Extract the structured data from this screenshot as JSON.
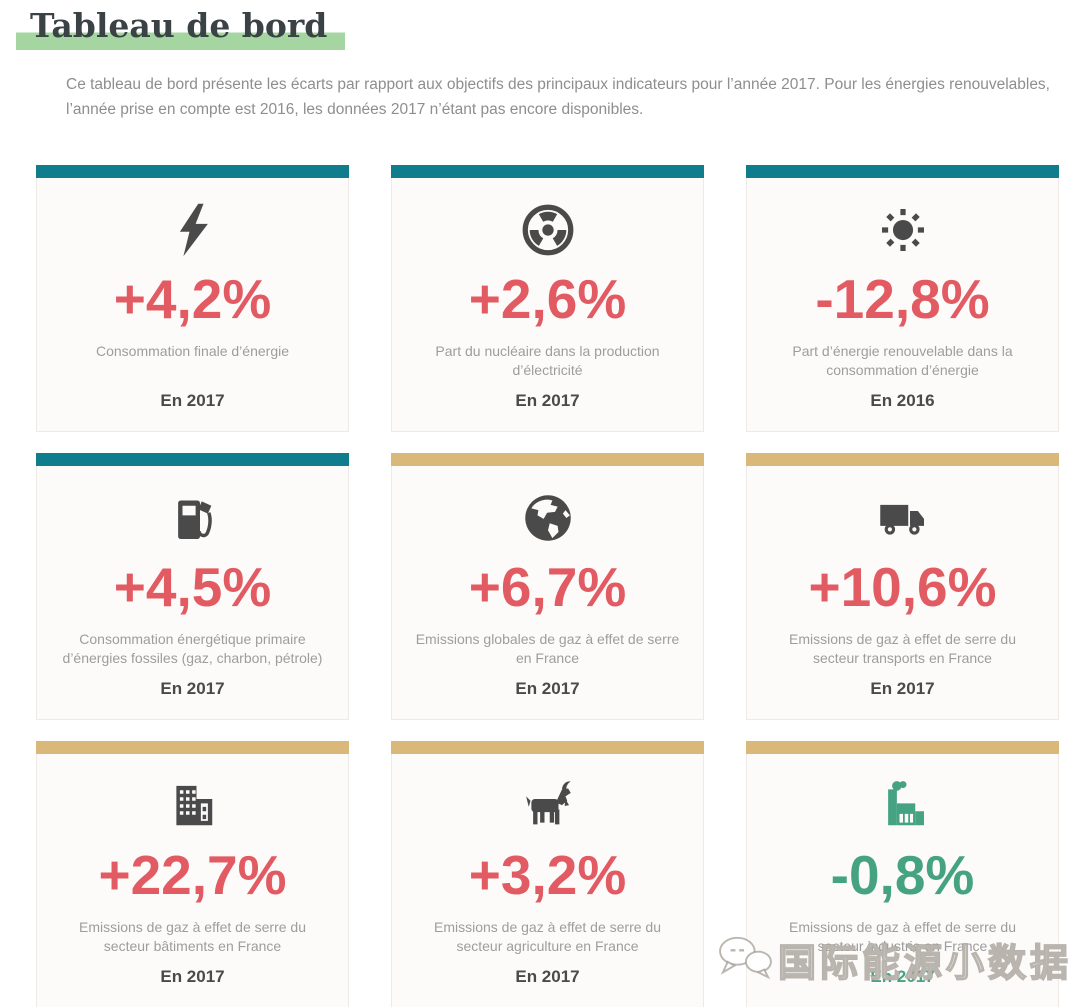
{
  "page": {
    "title": "Tableau de bord",
    "intro": "Ce tableau de bord présente les écarts par rapport aux objectifs des principaux indicateurs pour l’année 2017. Pour les énergies renouvelables, l’année prise en compte est 2016, les données 2017 n’étant pas encore disponibles."
  },
  "colors": {
    "teal": "#0f7d8c",
    "tan": "#d9b87a",
    "red": "#e25b63",
    "green": "#45a383",
    "dark": "#4a4a4a",
    "title_highlight": "#a5d5a0"
  },
  "cards": [
    {
      "icon": "lightning-icon",
      "icon_color": "dark",
      "accent": "teal",
      "value": "+4,2%",
      "value_color": "red",
      "label": "Consommation finale d’énergie",
      "year": "En 2017",
      "year_color": "dark"
    },
    {
      "icon": "radiation-icon",
      "icon_color": "dark",
      "accent": "teal",
      "value": "+2,6%",
      "value_color": "red",
      "label": "Part du nucléaire dans la production d’électricité",
      "year": "En 2017",
      "year_color": "dark"
    },
    {
      "icon": "sun-icon",
      "icon_color": "dark",
      "accent": "teal",
      "value": "-12,8%",
      "value_color": "red",
      "label": "Part d’énergie renouvelable dans la consommation d’énergie",
      "year": "En 2016",
      "year_color": "dark"
    },
    {
      "icon": "fuel-pump-icon",
      "icon_color": "dark",
      "accent": "teal",
      "value": "+4,5%",
      "value_color": "red",
      "label": "Consommation énergétique primaire d’énergies fossiles (gaz, charbon, pétrole)",
      "year": "En 2017",
      "year_color": "dark"
    },
    {
      "icon": "globe-icon",
      "icon_color": "dark",
      "accent": "tan",
      "value": "+6,7%",
      "value_color": "red",
      "label": "Emissions globales de gaz à effet de serre en France",
      "year": "En 2017",
      "year_color": "dark"
    },
    {
      "icon": "truck-icon",
      "icon_color": "dark",
      "accent": "tan",
      "value": "+10,6%",
      "value_color": "red",
      "label": "Emissions de gaz à effet de serre du secteur transports en France",
      "year": "En 2017",
      "year_color": "dark"
    },
    {
      "icon": "building-icon",
      "icon_color": "dark",
      "accent": "tan",
      "value": "+22,7%",
      "value_color": "red",
      "label": "Emissions de gaz à effet de serre du secteur bâtiments en France",
      "year": "En 2017",
      "year_color": "dark"
    },
    {
      "icon": "goat-icon",
      "icon_color": "dark",
      "accent": "tan",
      "value": "+3,2%",
      "value_color": "red",
      "label": "Emissions de gaz à effet de serre du secteur agriculture en France",
      "year": "En 2017",
      "year_color": "dark"
    },
    {
      "icon": "factory-icon",
      "icon_color": "green",
      "accent": "tan",
      "value": "-0,8%",
      "value_color": "green",
      "label": "Emissions de gaz à effet de serre du secteur industrie en France",
      "year": "En 2017",
      "year_color": "green"
    }
  ],
  "watermark": {
    "text": "国际能源小数据"
  }
}
